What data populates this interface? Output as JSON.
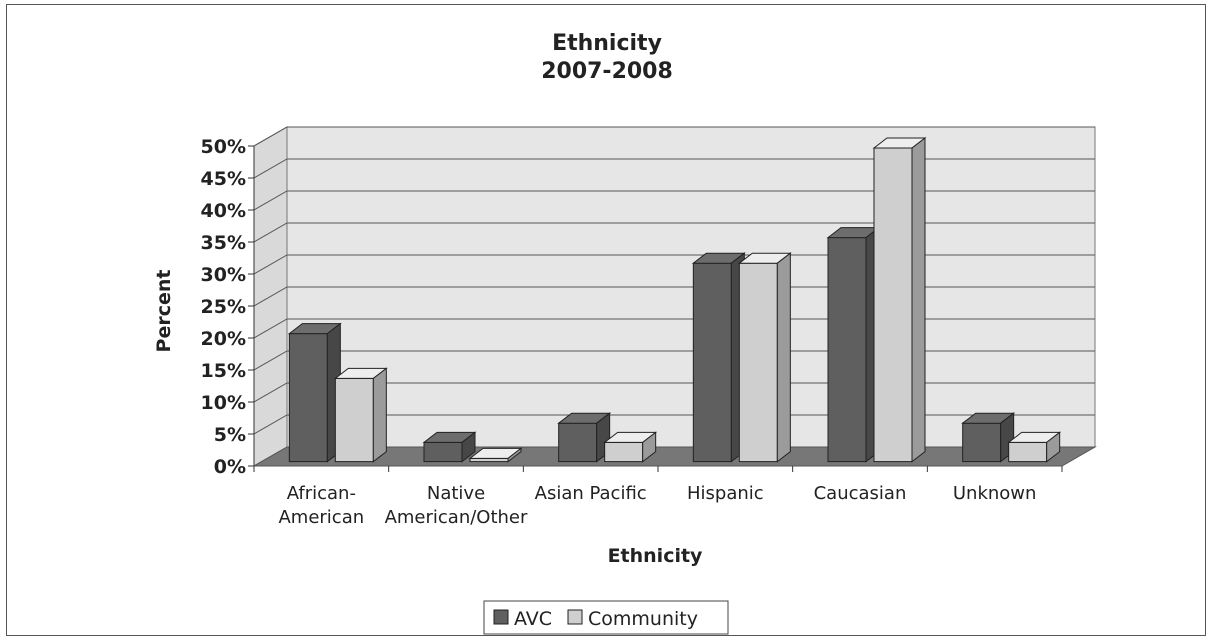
{
  "chart_data": {
    "type": "bar",
    "title": "Ethnicity",
    "subtitle": "2007-2008",
    "xlabel": "Ethnicity",
    "ylabel": "Percent",
    "ylim": [
      0,
      50
    ],
    "yticks": [
      "0%",
      "5%",
      "10%",
      "15%",
      "20%",
      "25%",
      "30%",
      "35%",
      "40%",
      "45%",
      "50%"
    ],
    "categories": [
      [
        "African-",
        "American"
      ],
      [
        "Native",
        "American/Other"
      ],
      [
        "Asian Pacific"
      ],
      [
        "Hispanic"
      ],
      [
        "Caucasian"
      ],
      [
        "Unknown"
      ]
    ],
    "series": [
      {
        "name": "AVC",
        "values": [
          20,
          3,
          6,
          31,
          35,
          6
        ],
        "color": "#5f5f5f"
      },
      {
        "name": "Community",
        "values": [
          13,
          0.5,
          3,
          31,
          49,
          3
        ],
        "color": "#cfcfcf"
      }
    ],
    "grid": true,
    "legend": "bottom",
    "style": "3d-clustered-column"
  }
}
